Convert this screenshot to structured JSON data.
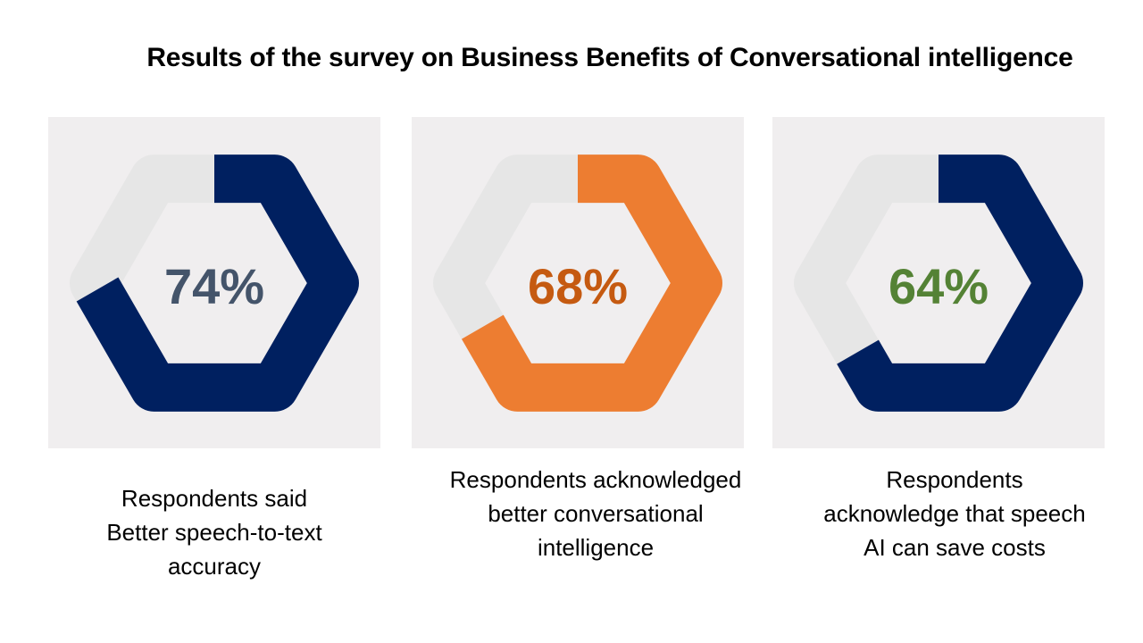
{
  "title": "Results of the survey on Business Benefits of Conversational intelligence",
  "chart_data": [
    {
      "type": "donut",
      "shape": "hexagon",
      "values": [
        74
      ],
      "percent_label": "74%",
      "caption": [
        "Respondents said",
        "Better speech-to-text",
        "accuracy"
      ],
      "colors": {
        "fill": "#002060",
        "track": "#e6e6e6",
        "label": "#44546a"
      }
    },
    {
      "type": "donut",
      "shape": "hexagon",
      "values": [
        68
      ],
      "percent_label": "68%",
      "caption": [
        "Respondents acknowledged",
        "better conversational",
        "intelligence"
      ],
      "colors": {
        "fill": "#ed7d31",
        "track": "#e6e6e6",
        "label": "#c55a11"
      }
    },
    {
      "type": "donut",
      "shape": "hexagon",
      "values": [
        64
      ],
      "percent_label": "64%",
      "caption": [
        "Respondents",
        "acknowledge that speech",
        "AI can save costs"
      ],
      "colors": {
        "fill": "#002060",
        "track": "#e6e6e6",
        "label": "#548235"
      }
    }
  ]
}
